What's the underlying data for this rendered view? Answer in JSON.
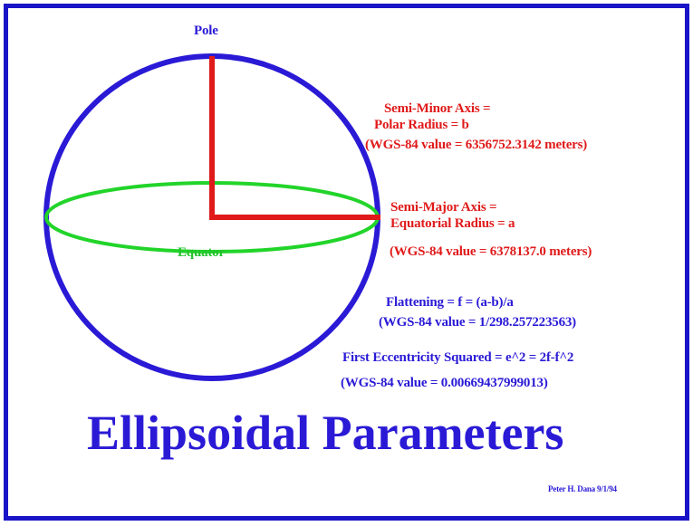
{
  "labels": {
    "pole": "Pole",
    "equator": "Equator",
    "semi_minor_line1": "Semi-Minor Axis =",
    "semi_minor_line2": "Polar Radius = b",
    "semi_minor_value": "(WGS-84 value = 6356752.3142 meters)",
    "semi_major_line1": "Semi-Major Axis =",
    "semi_major_line2": "Equatorial Radius = a",
    "semi_major_value": "(WGS-84 value = 6378137.0  meters)",
    "flattening_formula": "Flattening = f = (a-b)/a",
    "flattening_value": "(WGS-84 value = 1/298.257223563)",
    "eccentricity_formula": "First Eccentricity Squared = e^2 = 2f-f^2",
    "eccentricity_value": "(WGS-84 value = 0.00669437999013)",
    "title": "Ellipsoidal Parameters",
    "credit": "Peter H. Dana 9/1/94"
  },
  "colors": {
    "frame": "#1a14c8",
    "sphere": "#2a1ad6",
    "equator": "#22d42a",
    "axes": "#e01a1a",
    "text_blue": "#2a1ad6",
    "text_red": "#e01a1a"
  }
}
